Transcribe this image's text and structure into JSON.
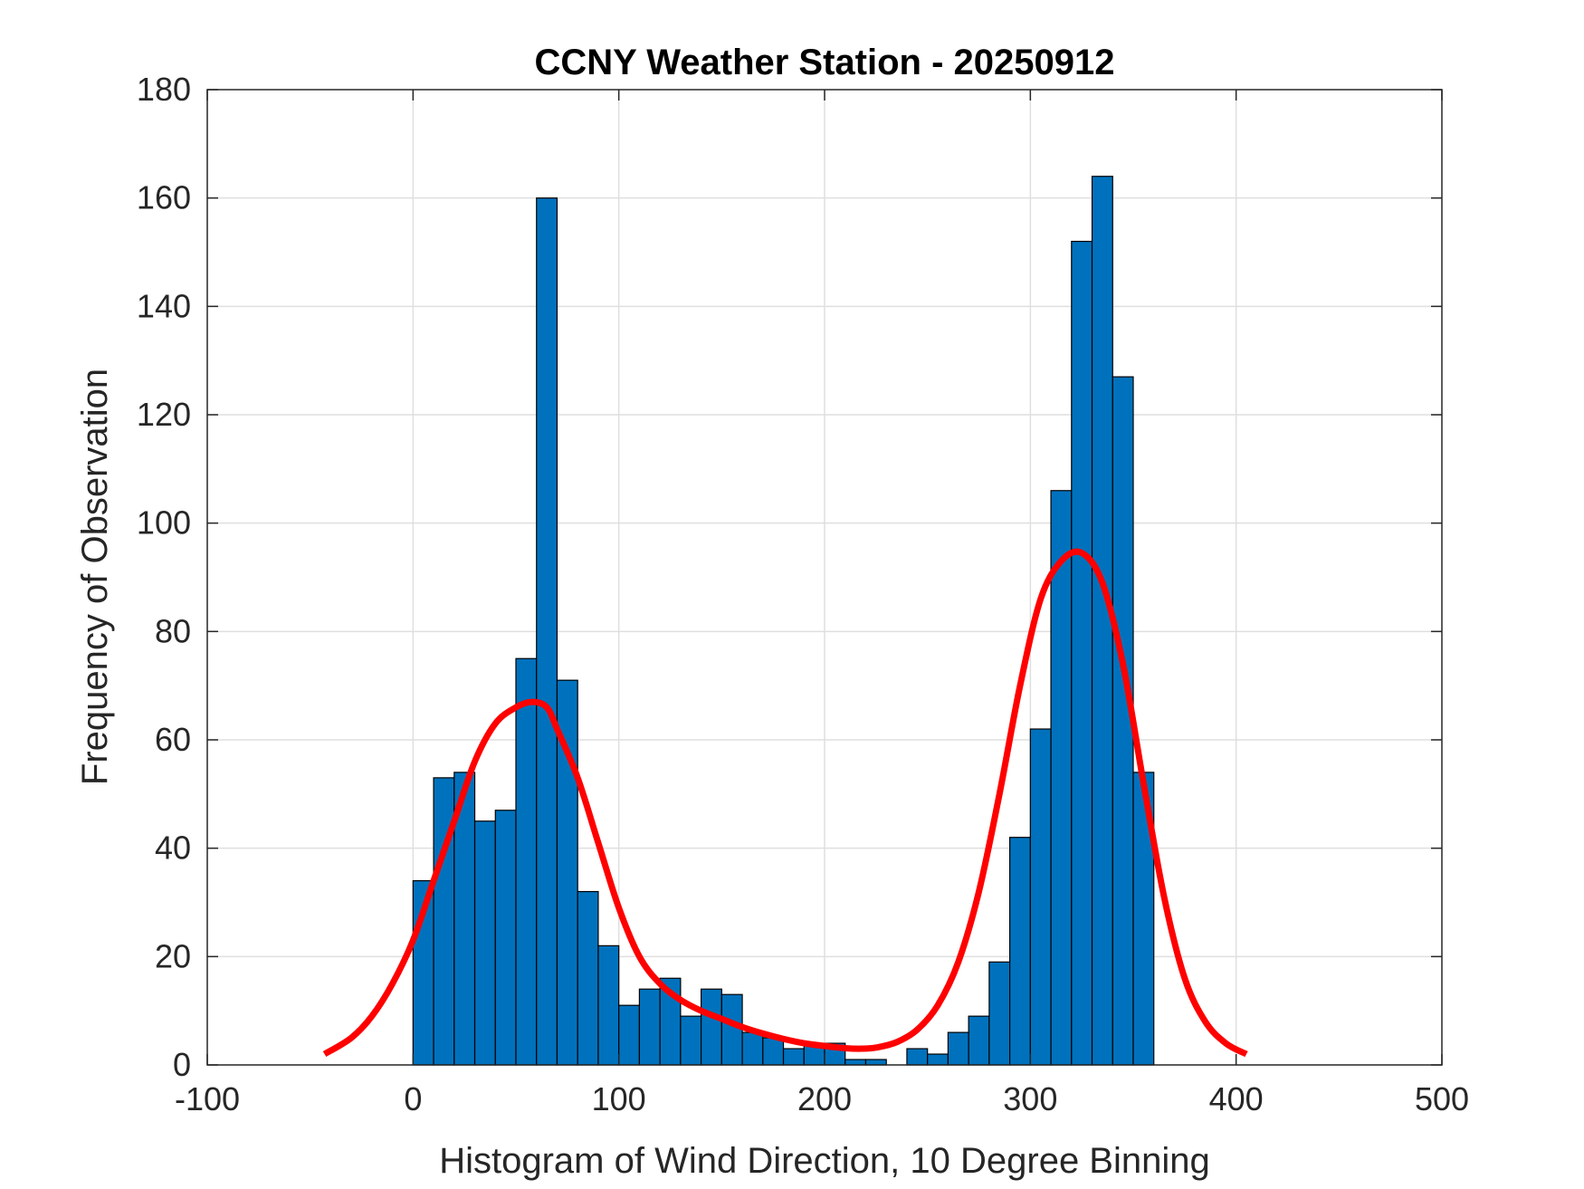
{
  "chart_data": {
    "type": "bar",
    "title": "CCNY Weather Station - 20250912",
    "xlabel": "Histogram of Wind Direction, 10 Degree Binning",
    "ylabel": "Frequency of Observation",
    "xlim": [
      -100,
      500
    ],
    "ylim": [
      0,
      180
    ],
    "xticks": [
      -100,
      0,
      100,
      200,
      300,
      400,
      500
    ],
    "yticks": [
      0,
      20,
      40,
      60,
      80,
      100,
      120,
      140,
      160,
      180
    ],
    "xtick_labels": [
      "-100",
      "0",
      "100",
      "200",
      "300",
      "400",
      "500"
    ],
    "ytick_labels": [
      "0",
      "20",
      "40",
      "60",
      "80",
      "100",
      "120",
      "140",
      "160",
      "180"
    ],
    "grid": true,
    "bin_width": 10,
    "bin_edges_start": 0,
    "values": [
      34,
      53,
      54,
      45,
      47,
      75,
      160,
      71,
      32,
      22,
      11,
      14,
      16,
      9,
      14,
      13,
      6,
      5,
      3,
      4,
      4,
      1,
      1,
      0,
      3,
      2,
      6,
      9,
      19,
      42,
      62,
      106,
      152,
      164,
      127,
      54
    ],
    "series": [
      {
        "name": "fit",
        "type": "line",
        "color": "#ff0000",
        "x": [
          -43,
          -30,
          -20,
          -10,
          0,
          10,
          20,
          30,
          40,
          50,
          58,
          65,
          70,
          80,
          90,
          100,
          110,
          120,
          130,
          140,
          150,
          160,
          170,
          180,
          190,
          200,
          210,
          218,
          225,
          235,
          245,
          255,
          265,
          275,
          285,
          295,
          305,
          315,
          325,
          335,
          345,
          355,
          365,
          375,
          385,
          395,
          405
        ],
        "y": [
          2,
          5,
          9,
          15,
          23,
          34,
          45,
          56,
          63,
          66,
          67,
          66,
          62,
          53,
          41,
          29,
          20,
          15,
          12,
          10,
          8.5,
          7,
          5.8,
          4.8,
          4,
          3.5,
          3.1,
          3,
          3.2,
          4.2,
          6.5,
          11,
          19,
          32,
          50,
          70,
          86,
          93,
          94.5,
          89,
          74,
          52,
          31,
          16,
          8,
          4,
          2
        ]
      }
    ],
    "bar_color": "#0072bd",
    "bar_edge_color": "#000000"
  }
}
